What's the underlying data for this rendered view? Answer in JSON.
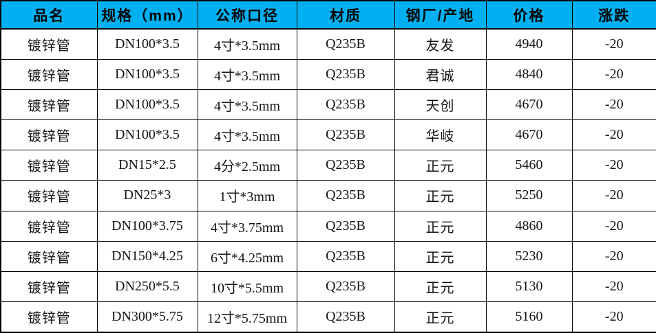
{
  "colors": {
    "header_background": "#00b0f0",
    "header_text": "#000000",
    "cell_text": "#141414",
    "grid_line": "#000000"
  },
  "chart_data": {
    "type": "table",
    "title": "",
    "columns": [
      "品名",
      "规格（mm）",
      "公称口径",
      "材质",
      "钢厂/产地",
      "价格",
      "涨跌"
    ],
    "rows": [
      [
        "镀锌管",
        "DN100*3.5",
        "4寸*3.5mm",
        "Q235B",
        "友发",
        "4940",
        "-20"
      ],
      [
        "镀锌管",
        "DN100*3.5",
        "4寸*3.5mm",
        "Q235B",
        "君诚",
        "4840",
        "-20"
      ],
      [
        "镀锌管",
        "DN100*3.5",
        "4寸*3.5mm",
        "Q235B",
        "天创",
        "4670",
        "-20"
      ],
      [
        "镀锌管",
        "DN100*3.5",
        "4寸*3.5mm",
        "Q235B",
        "华岐",
        "4670",
        "-20"
      ],
      [
        "镀锌管",
        "DN15*2.5",
        "4分*2.5mm",
        "Q235B",
        "正元",
        "5460",
        "-20"
      ],
      [
        "镀锌管",
        "DN25*3",
        "1寸*3mm",
        "Q235B",
        "正元",
        "5250",
        "-20"
      ],
      [
        "镀锌管",
        "DN100*3.75",
        "4寸*3.75mm",
        "Q235B",
        "正元",
        "4860",
        "-20"
      ],
      [
        "镀锌管",
        "DN150*4.25",
        "6寸*4.25mm",
        "Q235B",
        "正元",
        "5230",
        "-20"
      ],
      [
        "镀锌管",
        "DN250*5.5",
        "10寸*5.5mm",
        "Q235B",
        "正元",
        "5130",
        "-20"
      ],
      [
        "镀锌管",
        "DN300*5.75",
        "12寸*5.75mm",
        "Q235B",
        "正元",
        "5160",
        "-20"
      ]
    ]
  }
}
